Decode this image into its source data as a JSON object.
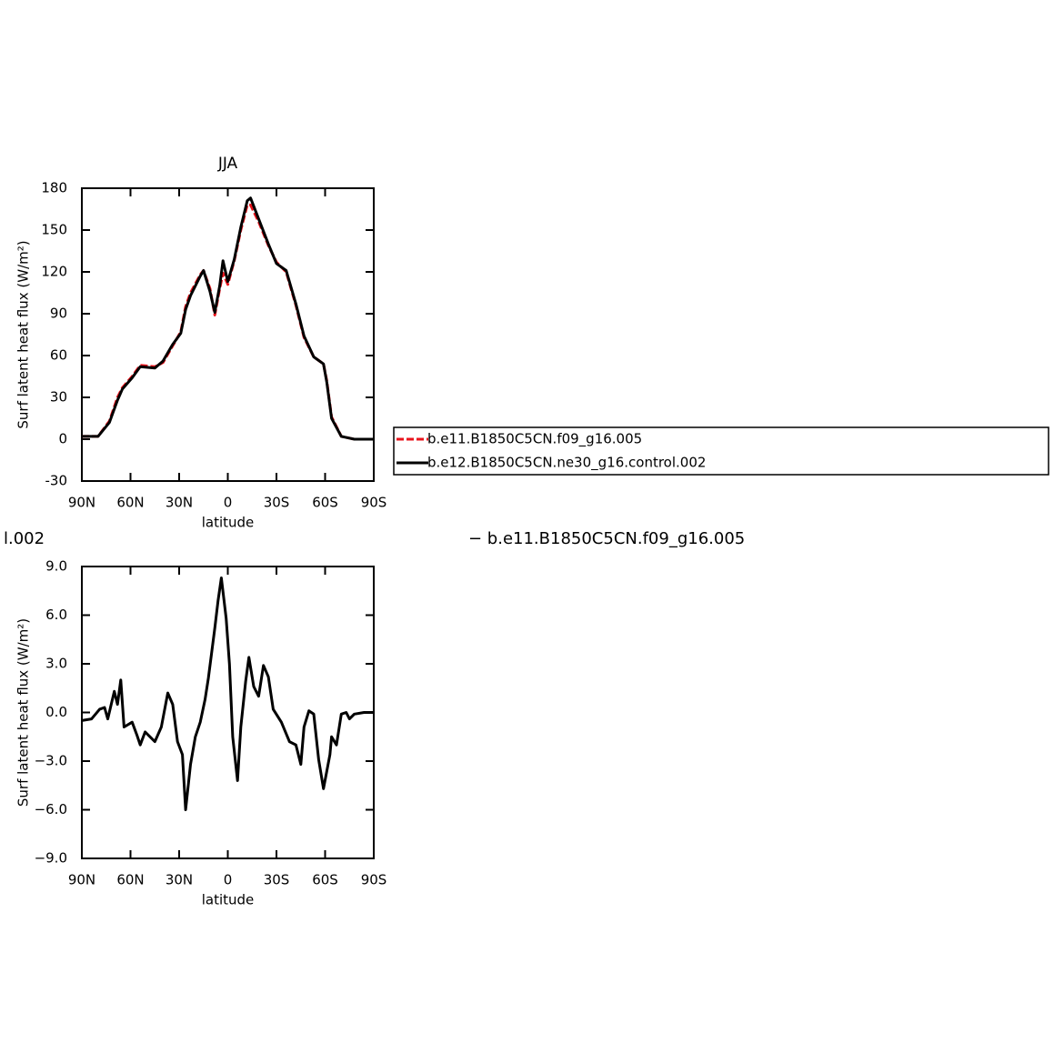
{
  "chart_data": [
    {
      "type": "line",
      "title": "JJA",
      "x_label": "latitude",
      "y_label": "Surf latent heat flux (W/m²)",
      "x": [
        90,
        80,
        73,
        68,
        65,
        59,
        54,
        45,
        40,
        34,
        29,
        26,
        23,
        17,
        15,
        11,
        8,
        5,
        3,
        0,
        -4,
        -8,
        -12,
        -14,
        -19,
        -25,
        -30,
        -36,
        -42,
        -47,
        -53,
        -59,
        -61,
        -64,
        -70,
        -78,
        -90
      ],
      "series": [
        {
          "name": "b.e11.B1850C5CN.f09_g16.005",
          "color": "#e8141c",
          "dashed": true,
          "values": [
            2,
            2,
            13,
            30,
            37,
            45,
            53,
            52,
            55,
            67,
            77,
            95,
            105,
            118,
            121,
            108,
            89,
            108,
            119,
            111,
            128,
            150,
            168,
            168,
            156,
            139,
            127,
            120,
            96,
            73,
            59,
            54,
            42,
            16,
            2,
            0,
            0
          ]
        },
        {
          "name": "b.e12.B1850C5CN.ne30_g16.control.002",
          "color": "#000000",
          "dashed": false,
          "values": [
            2,
            2,
            12,
            28,
            36,
            44,
            52,
            51,
            56,
            68,
            76,
            93,
            103,
            117,
            121,
            106,
            91,
            110,
            128,
            113,
            129,
            152,
            171,
            173,
            158,
            140,
            126,
            121,
            97,
            74,
            59,
            54,
            41,
            15,
            2,
            0,
            0
          ]
        }
      ],
      "xlim": [
        90,
        -90
      ],
      "xticks": [
        {
          "value": 90,
          "label": "90N"
        },
        {
          "value": 60,
          "label": "60N"
        },
        {
          "value": 30,
          "label": "30N"
        },
        0,
        {
          "value": -30,
          "label": "30S"
        },
        {
          "value": -60,
          "label": "60S"
        },
        {
          "value": -90,
          "label": "90S"
        }
      ],
      "ylim": [
        -30,
        180
      ],
      "yticks": [
        180,
        150,
        120,
        90,
        60,
        30,
        0,
        -30
      ],
      "legend": "right"
    },
    {
      "type": "line",
      "title_left": "l.002",
      "title_right": "− b.e11.B1850C5CN.f09_g16.005",
      "x_label": "latitude",
      "y_label": "Surf latent heat flux (W/m²)",
      "color": "#000000",
      "x": [
        90,
        84,
        79,
        76,
        74,
        70,
        68,
        66,
        64,
        59,
        56,
        54,
        51,
        45,
        41,
        37,
        34,
        31,
        28,
        26,
        23,
        20,
        17,
        14,
        12,
        8,
        6,
        4,
        1,
        -1,
        -3,
        -6,
        -8,
        -11,
        -13,
        -16,
        -19,
        -22,
        -25,
        -28,
        -33,
        -38,
        -42,
        -45,
        -47,
        -50,
        -53,
        -56,
        -59,
        -63,
        -64,
        -67,
        -70,
        -73,
        -75,
        -78,
        -84,
        -90
      ],
      "values": [
        -0.5,
        -0.4,
        0.2,
        0.3,
        -0.4,
        1.3,
        0.5,
        2.0,
        -0.9,
        -0.6,
        -1.4,
        -2.0,
        -1.2,
        -1.8,
        -0.9,
        1.2,
        0.5,
        -1.8,
        -2.6,
        -6.0,
        -3.2,
        -1.5,
        -0.6,
        0.8,
        2.1,
        5.2,
        6.9,
        8.3,
        5.8,
        3.0,
        -1.5,
        -4.2,
        -0.9,
        1.9,
        3.4,
        1.6,
        1.0,
        2.9,
        2.2,
        0.2,
        -0.6,
        -1.8,
        -2.0,
        -3.2,
        -0.9,
        0.1,
        -0.1,
        -2.9,
        -4.7,
        -2.6,
        -1.5,
        -2.0,
        -0.1,
        0.0,
        -0.4,
        -0.1,
        0.0,
        0.0
      ],
      "xlim": [
        90,
        -90
      ],
      "xticks": [
        {
          "value": 90,
          "label": "90N"
        },
        {
          "value": 60,
          "label": "60N"
        },
        {
          "value": 30,
          "label": "30N"
        },
        0,
        {
          "value": -30,
          "label": "30S"
        },
        {
          "value": -60,
          "label": "60S"
        },
        {
          "value": -90,
          "label": "90S"
        }
      ],
      "ylim": [
        -9,
        9
      ],
      "yticks": [
        {
          "value": 9,
          "label": "9.0"
        },
        {
          "value": 6,
          "label": "6.0"
        },
        {
          "value": 3,
          "label": "3.0"
        },
        {
          "value": 0,
          "label": "0.0"
        },
        {
          "value": -3,
          "label": "−3.0"
        },
        {
          "value": -6,
          "label": "−6.0"
        },
        {
          "value": -9,
          "label": "−9.0"
        }
      ]
    }
  ]
}
